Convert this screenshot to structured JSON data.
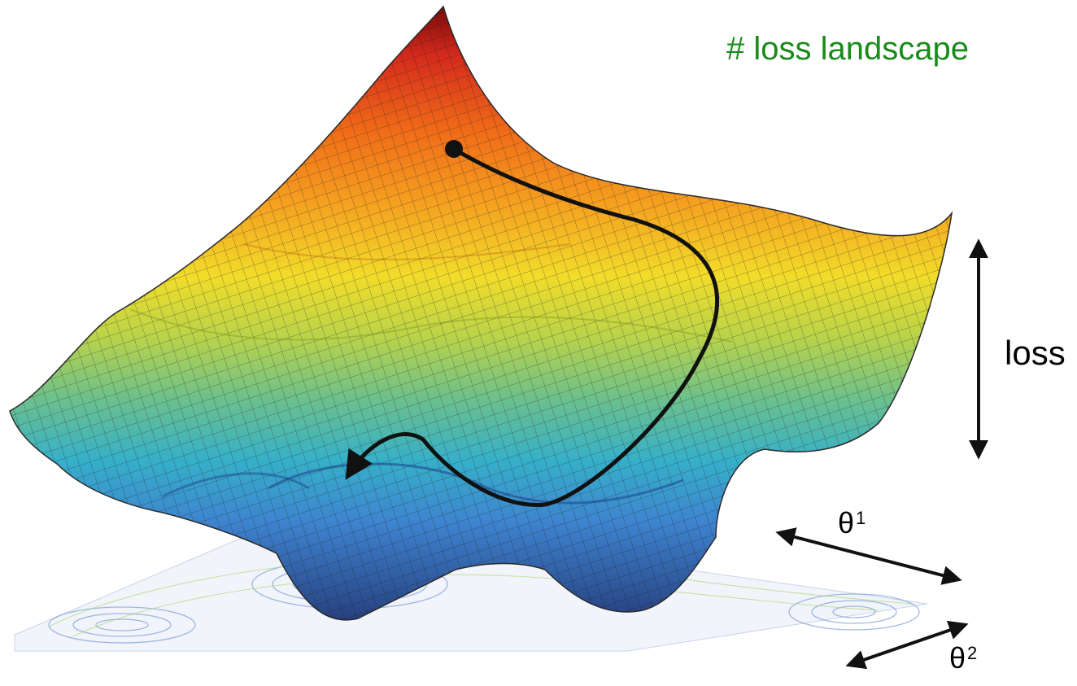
{
  "title": "# loss landscape",
  "axis_labels": {
    "loss": "loss",
    "theta1_base": "θ",
    "theta1_index": "1",
    "theta2_base": "θ",
    "theta2_index": "2"
  },
  "colors": {
    "title": "#1a8a1a",
    "arrow": "#111111",
    "path": "#111111",
    "surface_low": "#27407f",
    "surface_high": "#8b0d0d"
  },
  "icons": {
    "start_point": "dot-icon",
    "descent_path": "curved-arrow-icon"
  }
}
